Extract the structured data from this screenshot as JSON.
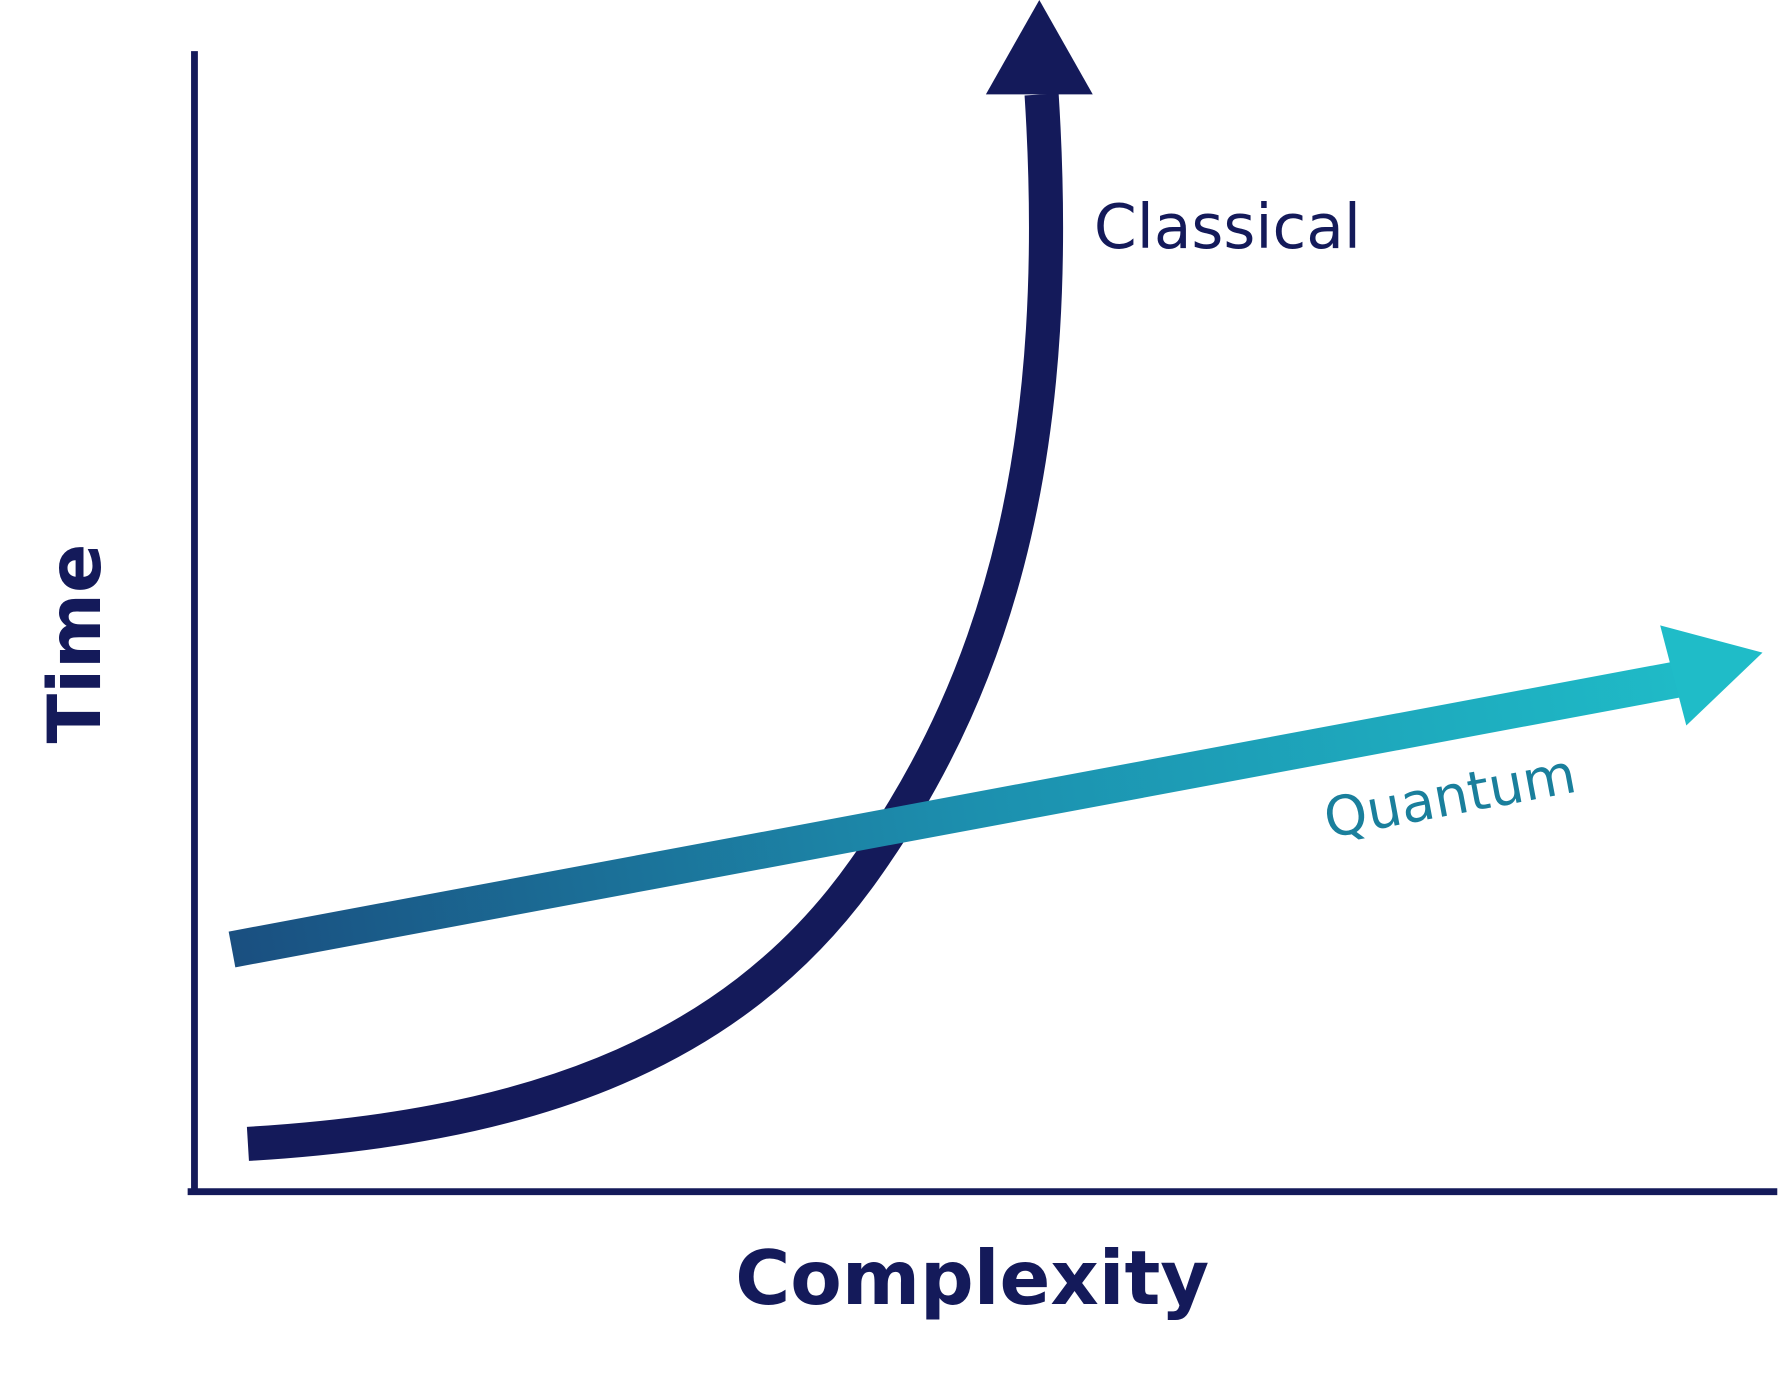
{
  "labels": {
    "classical": "Classical",
    "quantum": "Quantum",
    "y_axis": "Time",
    "x_axis": "Complexity"
  }
}
